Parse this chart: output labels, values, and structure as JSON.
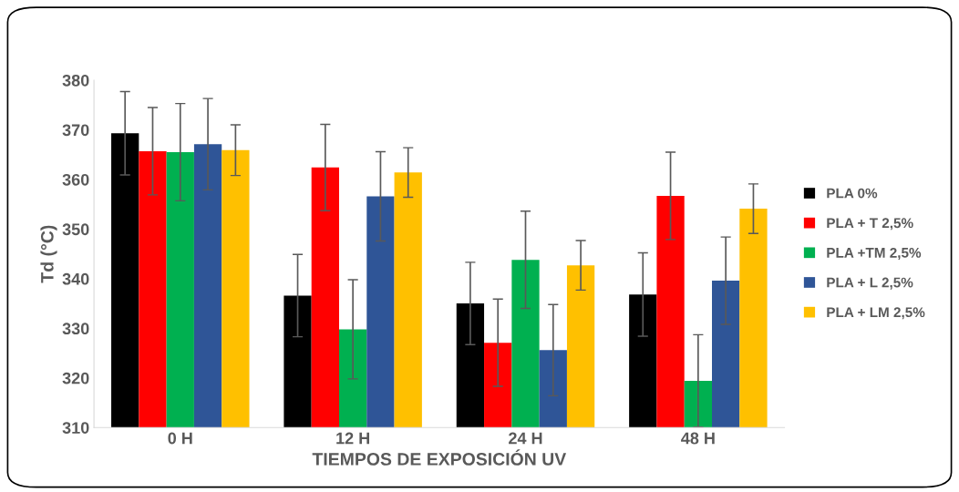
{
  "chart_data": {
    "type": "bar",
    "xlabel": "TIEMPOS DE EXPOSICIÓN UV",
    "ylabel": "Td (°C)",
    "categories": [
      "0 H",
      "12 H",
      "24 H",
      "48 H"
    ],
    "series": [
      {
        "name": "PLA 0%",
        "color": "#000000",
        "values": [
          369.3,
          336.6,
          335.0,
          336.8
        ],
        "errors": [
          8.4,
          8.3,
          8.3,
          8.4
        ]
      },
      {
        "name": "PLA + T 2,5%",
        "color": "#ff0000",
        "values": [
          365.7,
          362.4,
          327.1,
          356.7
        ],
        "errors": [
          8.8,
          8.7,
          8.8,
          8.8
        ]
      },
      {
        "name": "PLA +TM 2,5%",
        "color": "#00b050",
        "values": [
          365.5,
          329.8,
          343.8,
          319.4
        ],
        "errors": [
          9.8,
          10.0,
          9.8,
          9.3
        ]
      },
      {
        "name": "PLA + L 2,5%",
        "color": "#2f5597",
        "values": [
          367.1,
          356.6,
          325.6,
          339.6
        ],
        "errors": [
          9.2,
          9.0,
          9.2,
          8.8
        ]
      },
      {
        "name": "PLA + LM 2,5%",
        "color": "#ffc000",
        "values": [
          365.9,
          361.4,
          342.7,
          354.1
        ],
        "errors": [
          5.1,
          5.0,
          5.0,
          5.0
        ]
      }
    ],
    "ylim": [
      310,
      380
    ],
    "yticks": [
      310,
      320,
      330,
      340,
      350,
      360,
      370,
      380
    ],
    "grid": false,
    "legend": "right"
  }
}
